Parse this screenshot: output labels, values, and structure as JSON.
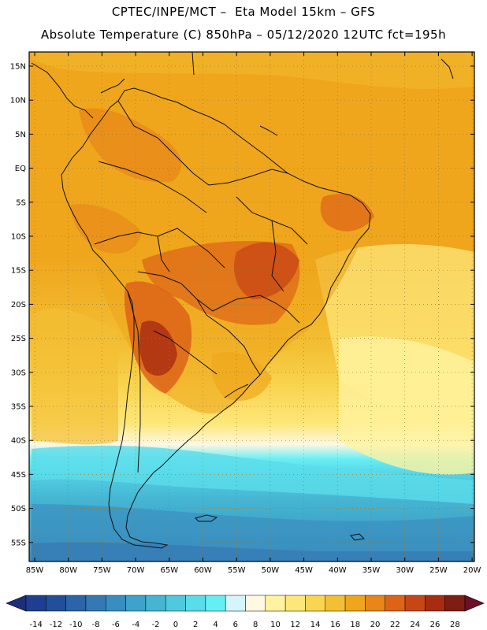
{
  "header": {
    "line1": "CPTEC/INPE/MCT –  Eta Model 15km – GFS",
    "line2": "Absolute Temperature (C) 850hPa – 05/12/2020 12UTC fct=195h"
  },
  "map": {
    "lat_labels": [
      "15N",
      "10N",
      "5N",
      "EQ",
      "5S",
      "10S",
      "15S",
      "20S",
      "25S",
      "30S",
      "35S",
      "40S",
      "45S",
      "50S",
      "55S"
    ],
    "lon_labels": [
      "85W",
      "80W",
      "75W",
      "70W",
      "65W",
      "60W",
      "55W",
      "50W",
      "45W",
      "40W",
      "35W",
      "30W",
      "25W",
      "20W"
    ],
    "region": "South America",
    "projection_extent": {
      "lon": [
        -86,
        -19
      ],
      "lat": [
        -58,
        16
      ]
    }
  },
  "colorbar": {
    "ticks": [
      "-14",
      "-12",
      "-10",
      "-8",
      "-6",
      "-4",
      "-2",
      "0",
      "2",
      "4",
      "6",
      "8",
      "10",
      "12",
      "14",
      "16",
      "18",
      "20",
      "22",
      "24",
      "26",
      "28"
    ],
    "colors": [
      "#1e3f8f",
      "#234f9a",
      "#2b64a8",
      "#3479b4",
      "#3a8dbf",
      "#3fa2c8",
      "#45b5d2",
      "#50c9de",
      "#5bdcea",
      "#66eef5",
      "#d4f6fb",
      "#fff8e3",
      "#fff39f",
      "#fde77a",
      "#f9d551",
      "#f3bf34",
      "#efa61d",
      "#e8861a",
      "#dd6318",
      "#c74616",
      "#a72c12",
      "#7d1d14"
    ],
    "min_color": "#1d2e7a",
    "max_color": "#6e0f2a"
  }
}
